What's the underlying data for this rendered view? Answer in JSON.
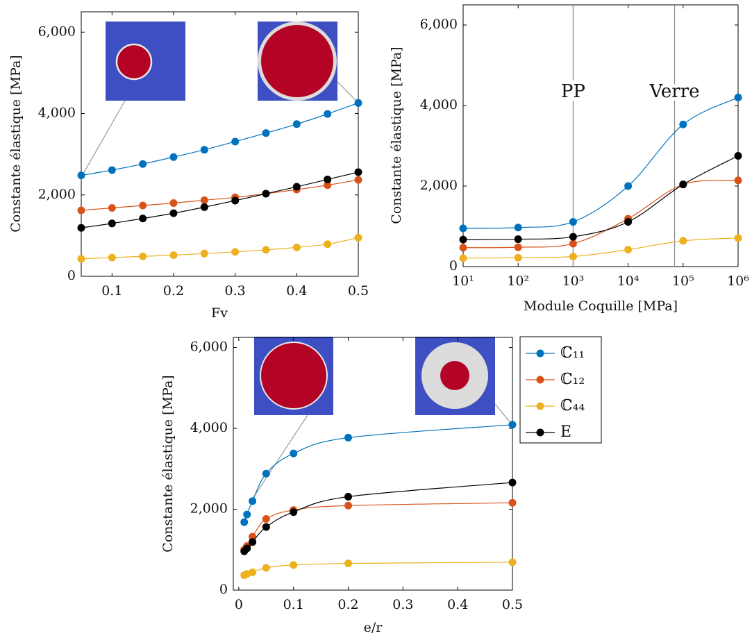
{
  "chart_data": [
    {
      "type": "line",
      "xlabel": "Fv",
      "ylabel": "Constante élastique [MPa]",
      "x": [
        0.05,
        0.1,
        0.15,
        0.2,
        0.25,
        0.3,
        0.35,
        0.4,
        0.45,
        0.5
      ],
      "series": [
        {
          "color": "#0072bd",
          "values": [
            2480,
            2610,
            2760,
            2930,
            3110,
            3310,
            3520,
            3740,
            3990,
            4260
          ]
        },
        {
          "color": "#d95319",
          "values": [
            1620,
            1680,
            1740,
            1800,
            1870,
            1940,
            2030,
            2130,
            2240,
            2370
          ]
        },
        {
          "color": "#edb120",
          "values": [
            430,
            460,
            490,
            520,
            560,
            600,
            650,
            710,
            790,
            950
          ]
        },
        {
          "color": "#000000",
          "values": [
            1190,
            1300,
            1420,
            1550,
            1700,
            1860,
            2030,
            2200,
            2380,
            2560
          ]
        }
      ],
      "xlim": [
        0.05,
        0.5
      ],
      "xticks": [
        0.1,
        0.2,
        0.3,
        0.4,
        0.5
      ],
      "ylim": [
        0,
        6500
      ],
      "yticks": [
        0,
        {
          "value": 2000,
          "label": "2,000"
        },
        {
          "value": 4000,
          "label": "4,000"
        },
        {
          "value": 6000,
          "label": "6,000"
        }
      ]
    },
    {
      "type": "line",
      "xlabel": "Module Coquille [MPa]",
      "ylabel": "Constante élastique [MPa]",
      "xscale": "log",
      "x": [
        10,
        100,
        1000,
        10000,
        100000,
        1000000
      ],
      "series": [
        {
          "color": "#0072bd",
          "values": [
            950,
            970,
            1110,
            2000,
            3530,
            4200
          ]
        },
        {
          "color": "#d95319",
          "values": [
            470,
            480,
            570,
            1190,
            2040,
            2140
          ]
        },
        {
          "color": "#edb120",
          "values": [
            210,
            220,
            250,
            420,
            640,
            710
          ]
        },
        {
          "color": "#000000",
          "values": [
            670,
            680,
            740,
            1110,
            2040,
            2750
          ]
        }
      ],
      "vlines": [
        {
          "x": 1000,
          "label": "PP"
        },
        {
          "x": 70000,
          "label": "Verre"
        }
      ],
      "xlim": [
        10,
        1000000
      ],
      "xticks": [
        {
          "value": 10,
          "label": "10¹"
        },
        {
          "value": 100,
          "label": "10²"
        },
        {
          "value": 1000,
          "label": "10³"
        },
        {
          "value": 10000,
          "label": "10⁴"
        },
        {
          "value": 100000,
          "label": "10⁵"
        },
        {
          "value": 1000000,
          "label": "10⁶"
        }
      ],
      "ylim": [
        0,
        6500
      ],
      "yticks": [
        0,
        {
          "value": 2000,
          "label": "2,000"
        },
        {
          "value": 4000,
          "label": "4,000"
        },
        {
          "value": 6000,
          "label": "6,000"
        }
      ]
    },
    {
      "type": "line",
      "xlabel": "e/r",
      "ylabel": "Constante élastique [MPa]",
      "legend": "outer-north-east",
      "x": [
        0.01,
        0.015,
        0.025,
        0.05,
        0.1,
        0.2,
        0.5
      ],
      "series": [
        {
          "name": "ℂ₁₁",
          "color": "#0072bd",
          "values": [
            1680,
            1870,
            2200,
            2880,
            3380,
            3770,
            4090
          ]
        },
        {
          "name": "ℂ₁₂",
          "color": "#d95319",
          "values": [
            1000,
            1090,
            1320,
            1760,
            1980,
            2090,
            2160
          ]
        },
        {
          "name": "ℂ₄₄",
          "color": "#edb120",
          "values": [
            370,
            400,
            440,
            550,
            620,
            660,
            690
          ]
        },
        {
          "name": "E",
          "color": "#000000",
          "values": [
            960,
            1030,
            1190,
            1560,
            1930,
            2310,
            2660
          ]
        }
      ],
      "xlim": [
        -0.01,
        0.5
      ],
      "xticks": [
        0,
        0.1,
        0.2,
        0.3,
        0.4,
        0.5
      ],
      "ylim": [
        0,
        6250
      ],
      "yticks": [
        0,
        {
          "value": 2000,
          "label": "2,000"
        },
        {
          "value": 4000,
          "label": "4,000"
        },
        {
          "value": 6000,
          "label": "6,000"
        }
      ]
    }
  ]
}
